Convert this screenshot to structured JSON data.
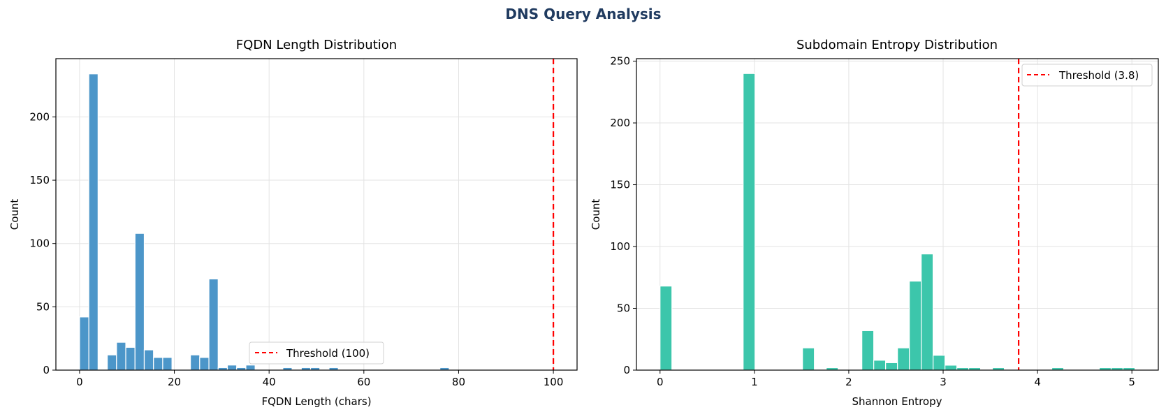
{
  "figure": {
    "title": "DNS Query Analysis",
    "title_color": "#1f3a5f"
  },
  "chart_data": [
    {
      "type": "bar",
      "title": "FQDN Length Distribution",
      "xlabel": "FQDN Length (chars)",
      "ylabel": "Count",
      "xlim": [
        -5,
        105
      ],
      "ylim": [
        0,
        246
      ],
      "xticks": [
        0,
        20,
        40,
        60,
        80,
        100
      ],
      "yticks": [
        0,
        50,
        100,
        150,
        200
      ],
      "grid": true,
      "bar_color": "#4c96c9",
      "bin_start": 0,
      "bin_width": 1.95,
      "values": [
        42,
        234,
        0,
        12,
        22,
        18,
        108,
        16,
        10,
        10,
        0,
        0,
        12,
        10,
        72,
        2,
        4,
        2,
        4,
        0,
        0,
        0,
        2,
        0,
        2,
        2,
        0,
        2,
        0,
        0,
        0,
        0,
        0,
        0,
        0,
        0,
        0,
        0,
        0,
        2
      ],
      "threshold": {
        "value": 100,
        "label": "Threshold (100)",
        "color": "#ff0000"
      },
      "legend_position": "lower center"
    },
    {
      "type": "bar",
      "title": "Subdomain Entropy Distribution",
      "xlabel": "Shannon Entropy",
      "ylabel": "Count",
      "xlim": [
        -0.25,
        5.28
      ],
      "ylim": [
        0,
        252
      ],
      "xticks": [
        0,
        1,
        2,
        3,
        4,
        5
      ],
      "yticks": [
        0,
        50,
        100,
        150,
        200,
        250
      ],
      "grid": true,
      "bar_color": "#3cc6ab",
      "bin_start": 0,
      "bin_width": 0.1258,
      "values": [
        68,
        0,
        0,
        0,
        0,
        0,
        0,
        240,
        0,
        0,
        0,
        0,
        18,
        0,
        2,
        0,
        0,
        32,
        8,
        6,
        18,
        72,
        94,
        12,
        4,
        2,
        2,
        0,
        2,
        0,
        0,
        0,
        0,
        2,
        0,
        0,
        0,
        2,
        2,
        2
      ],
      "threshold": {
        "value": 3.8,
        "label": "Threshold (3.8)",
        "color": "#ff0000"
      },
      "legend_position": "upper right"
    }
  ]
}
